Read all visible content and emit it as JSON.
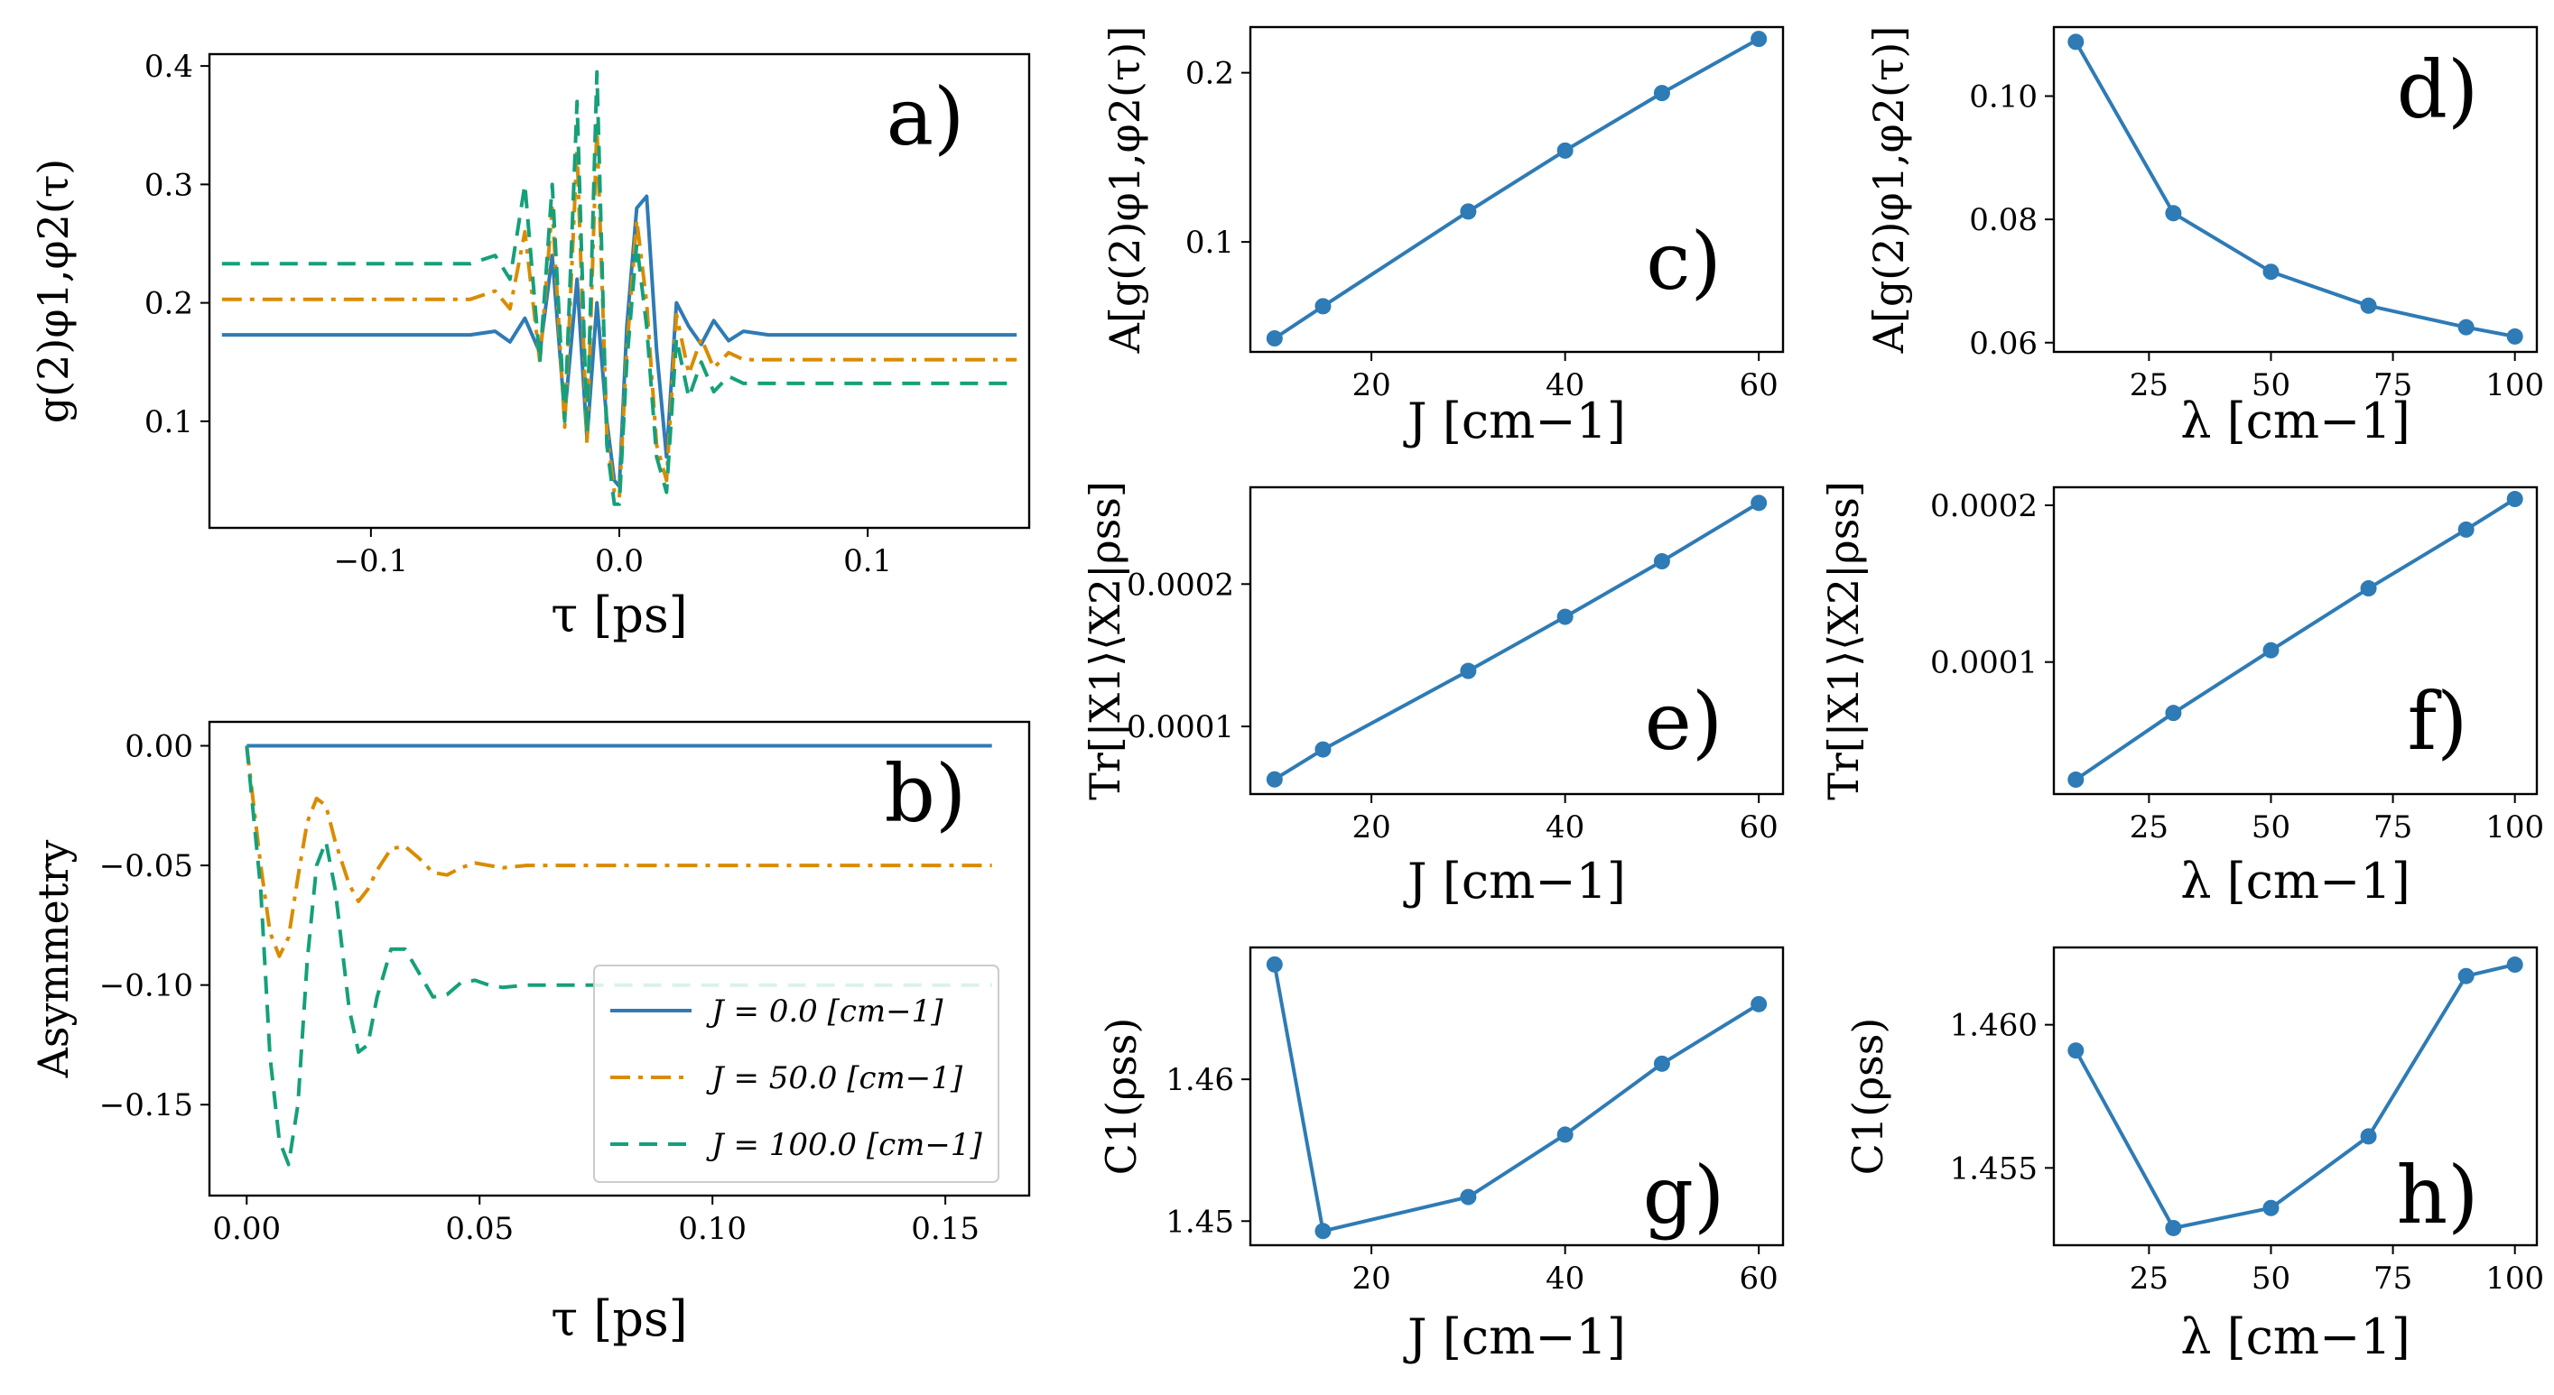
{
  "colors": {
    "blue": "#2e7bb5",
    "orange": "#d98c00",
    "green": "#15a07a"
  },
  "chart_data": [
    {
      "id": "a",
      "type": "line",
      "panel_label": "a)",
      "xlabel": "τ [ps]",
      "ylabel": "g(2)φ1,φ2(τ)",
      "xlim": [
        -0.165,
        0.165
      ],
      "ylim": [
        0.01,
        0.41
      ],
      "xticks": [
        -0.1,
        0.0,
        0.1
      ],
      "xtick_labels": [
        "−0.1",
        "0.0",
        "0.1"
      ],
      "yticks": [
        0.1,
        0.2,
        0.3,
        0.4
      ],
      "ytick_labels": [
        "0.1",
        "0.2",
        "0.3",
        "0.4"
      ],
      "x": [
        -0.16,
        -0.06,
        -0.05,
        -0.044,
        -0.038,
        -0.032,
        -0.027,
        -0.022,
        -0.017,
        -0.013,
        -0.009,
        -0.005,
        -0.002,
        0.0,
        0.003,
        0.007,
        0.011,
        0.015,
        0.019,
        0.023,
        0.028,
        0.033,
        0.038,
        0.044,
        0.05,
        0.06,
        0.16
      ],
      "series": [
        {
          "name": "J = 0.0 [cm−1]",
          "style": "solid",
          "color": "#2e7bb5",
          "values": [
            0.173,
            0.173,
            0.176,
            0.167,
            0.187,
            0.158,
            0.24,
            0.105,
            0.22,
            0.085,
            0.2,
            0.1,
            0.05,
            0.045,
            0.18,
            0.28,
            0.29,
            0.16,
            0.07,
            0.2,
            0.18,
            0.165,
            0.185,
            0.168,
            0.176,
            0.173,
            0.173
          ]
        },
        {
          "name": "J = 50.0 [cm−1]",
          "style": "dashdot",
          "color": "#d98c00",
          "values": [
            0.203,
            0.203,
            0.21,
            0.195,
            0.26,
            0.15,
            0.28,
            0.095,
            0.33,
            0.08,
            0.35,
            0.09,
            0.04,
            0.035,
            0.16,
            0.27,
            0.2,
            0.08,
            0.05,
            0.19,
            0.14,
            0.17,
            0.145,
            0.158,
            0.152,
            0.152,
            0.152
          ]
        },
        {
          "name": "J = 100.0 [cm−1]",
          "style": "dashed",
          "color": "#15a07a",
          "values": [
            0.233,
            0.233,
            0.24,
            0.22,
            0.3,
            0.15,
            0.3,
            0.1,
            0.37,
            0.09,
            0.395,
            0.08,
            0.03,
            0.03,
            0.15,
            0.25,
            0.18,
            0.07,
            0.04,
            0.17,
            0.12,
            0.15,
            0.125,
            0.138,
            0.132,
            0.132,
            0.132
          ]
        }
      ]
    },
    {
      "id": "b",
      "type": "line",
      "panel_label": "b)",
      "xlabel": "τ [ps]",
      "ylabel": "Asymmetry",
      "xlim": [
        -0.008,
        0.168
      ],
      "ylim": [
        -0.188,
        0.01
      ],
      "xticks": [
        0.0,
        0.05,
        0.1,
        0.15
      ],
      "xtick_labels": [
        "0.00",
        "0.05",
        "0.10",
        "0.15"
      ],
      "yticks": [
        0.0,
        -0.05,
        -0.1,
        -0.15
      ],
      "ytick_labels": [
        "0.00",
        "−0.05",
        "−0.10",
        "−0.15"
      ],
      "x": [
        0.0,
        0.003,
        0.005,
        0.007,
        0.009,
        0.011,
        0.013,
        0.015,
        0.017,
        0.019,
        0.022,
        0.024,
        0.026,
        0.028,
        0.031,
        0.034,
        0.037,
        0.04,
        0.043,
        0.046,
        0.049,
        0.052,
        0.055,
        0.06,
        0.07,
        0.16
      ],
      "series": [
        {
          "name": "J = 0.0 [cm−1]",
          "style": "solid",
          "color": "#2e7bb5",
          "values": [
            0.0,
            0.0,
            0.0,
            0.0,
            0.0,
            0.0,
            0.0,
            0.0,
            0.0,
            0.0,
            0.0,
            0.0,
            0.0,
            0.0,
            0.0,
            0.0,
            0.0,
            0.0,
            0.0,
            0.0,
            0.0,
            0.0,
            0.0,
            0.0,
            0.0,
            0.0
          ]
        },
        {
          "name": "J = 50.0 [cm−1]",
          "style": "dashdot",
          "color": "#d98c00",
          "values": [
            0.0,
            -0.05,
            -0.078,
            -0.088,
            -0.08,
            -0.055,
            -0.032,
            -0.022,
            -0.025,
            -0.04,
            -0.058,
            -0.065,
            -0.06,
            -0.052,
            -0.043,
            -0.042,
            -0.047,
            -0.053,
            -0.054,
            -0.051,
            -0.049,
            -0.05,
            -0.051,
            -0.05,
            -0.05,
            -0.05
          ]
        },
        {
          "name": "J = 100.0 [cm−1]",
          "style": "dashed",
          "color": "#15a07a",
          "values": [
            0.0,
            -0.06,
            -0.13,
            -0.165,
            -0.175,
            -0.15,
            -0.09,
            -0.05,
            -0.04,
            -0.06,
            -0.11,
            -0.128,
            -0.125,
            -0.105,
            -0.085,
            -0.085,
            -0.095,
            -0.105,
            -0.104,
            -0.099,
            -0.098,
            -0.1,
            -0.101,
            -0.1,
            -0.1,
            -0.1
          ]
        }
      ],
      "legend": {
        "position": "lower-right",
        "entries": [
          {
            "label": "J = 0.0 [cm−1]",
            "style": "solid",
            "color": "#2e7bb5"
          },
          {
            "label": "J = 50.0 [cm−1]",
            "style": "dashdot",
            "color": "#d98c00"
          },
          {
            "label": "J = 100.0 [cm−1]",
            "style": "dashed",
            "color": "#15a07a"
          }
        ]
      }
    },
    {
      "id": "c",
      "type": "line",
      "panel_label": "c)",
      "xlabel": "J [cm−1]",
      "ylabel": "A[g(2)φ1,φ2(τ)]",
      "xlim": [
        7.5,
        62.5
      ],
      "ylim": [
        0.035,
        0.227
      ],
      "xticks": [
        20,
        40,
        60
      ],
      "xtick_labels": [
        "20",
        "40",
        "60"
      ],
      "yticks": [
        0.1,
        0.2
      ],
      "ytick_labels": [
        "0.1",
        "0.2"
      ],
      "x": [
        10,
        15,
        30,
        40,
        50,
        60
      ],
      "series": [
        {
          "name": "c",
          "style": "solid-markers",
          "color": "#2e7bb5",
          "values": [
            0.043,
            0.062,
            0.118,
            0.154,
            0.188,
            0.22
          ]
        }
      ]
    },
    {
      "id": "d",
      "type": "line",
      "panel_label": "d)",
      "xlabel": "λ [cm−1]",
      "ylabel": "A[g(2)φ1,φ2(τ)]",
      "xlim": [
        5.5,
        104.5
      ],
      "ylim": [
        0.0585,
        0.1112
      ],
      "xticks": [
        25,
        50,
        75,
        100
      ],
      "xtick_labels": [
        "25",
        "50",
        "75",
        "100"
      ],
      "yticks": [
        0.06,
        0.08,
        0.1
      ],
      "ytick_labels": [
        "0.06",
        "0.08",
        "0.10"
      ],
      "x": [
        10,
        30,
        50,
        70,
        90,
        100
      ],
      "series": [
        {
          "name": "d",
          "style": "solid-markers",
          "color": "#2e7bb5",
          "values": [
            0.1088,
            0.081,
            0.0715,
            0.066,
            0.0625,
            0.061
          ]
        }
      ]
    },
    {
      "id": "e",
      "type": "line",
      "panel_label": "e)",
      "xlabel": "J [cm−1]",
      "ylabel": "Tr[|X1⟩⟨X2|ρss]",
      "xlim": [
        7.5,
        62.5
      ],
      "ylim": [
        5.25e-05,
        0.000268
      ],
      "xticks": [
        20,
        40,
        60
      ],
      "xtick_labels": [
        "20",
        "40",
        "60"
      ],
      "yticks": [
        0.0001,
        0.0002
      ],
      "ytick_labels": [
        "0.0001",
        "0.0002"
      ],
      "x": [
        10,
        15,
        30,
        40,
        50,
        60
      ],
      "series": [
        {
          "name": "e",
          "style": "solid-markers",
          "color": "#2e7bb5",
          "values": [
            6.28e-05,
            8.38e-05,
            0.000139,
            0.000177,
            0.000216,
            0.000257
          ]
        }
      ]
    },
    {
      "id": "f",
      "type": "line",
      "panel_label": "f)",
      "xlabel": "λ [cm−1]",
      "ylabel": "Tr[|X1⟩⟨X2|ρss]",
      "xlim": [
        5.5,
        104.5
      ],
      "ylim": [
        1.58e-05,
        0.0002115
      ],
      "xticks": [
        25,
        50,
        75,
        100
      ],
      "xtick_labels": [
        "25",
        "50",
        "75",
        "100"
      ],
      "yticks": [
        0.0001,
        0.0002
      ],
      "ytick_labels": [
        "0.0001",
        "0.0002"
      ],
      "x": [
        10,
        30,
        50,
        70,
        90,
        100
      ],
      "series": [
        {
          "name": "f",
          "style": "solid-markers",
          "color": "#2e7bb5",
          "values": [
            2.5e-05,
            6.75e-05,
            0.0001075,
            0.000147,
            0.0001845,
            0.000204
          ]
        }
      ]
    },
    {
      "id": "g",
      "type": "line",
      "panel_label": "g)",
      "xlabel": "J [cm−1]",
      "ylabel": "C1(ρss)",
      "xlim": [
        7.5,
        62.5
      ],
      "ylim": [
        1.4483,
        1.4693
      ],
      "xticks": [
        20,
        40,
        60
      ],
      "xtick_labels": [
        "20",
        "40",
        "60"
      ],
      "yticks": [
        1.45,
        1.46
      ],
      "ytick_labels": [
        "1.45",
        "1.46"
      ],
      "x": [
        10,
        15,
        30,
        40,
        50,
        60
      ],
      "series": [
        {
          "name": "g",
          "style": "solid-markers",
          "color": "#2e7bb5",
          "values": [
            1.4681,
            1.4493,
            1.4517,
            1.4561,
            1.4611,
            1.4653
          ]
        }
      ]
    },
    {
      "id": "h",
      "type": "line",
      "panel_label": "h)",
      "xlabel": "λ [cm−1]",
      "ylabel": "C1(ρss)",
      "xlim": [
        5.5,
        104.5
      ],
      "ylim": [
        1.4523,
        1.4627
      ],
      "xticks": [
        25,
        50,
        75,
        100
      ],
      "xtick_labels": [
        "25",
        "50",
        "75",
        "100"
      ],
      "yticks": [
        1.455,
        1.46
      ],
      "ytick_labels": [
        "1.455",
        "1.460"
      ],
      "x": [
        10,
        30,
        50,
        70,
        90,
        100
      ],
      "series": [
        {
          "name": "h",
          "style": "solid-markers",
          "color": "#2e7bb5",
          "values": [
            1.4591,
            1.4529,
            1.4536,
            1.4561,
            1.4617,
            1.4621
          ]
        }
      ]
    }
  ]
}
